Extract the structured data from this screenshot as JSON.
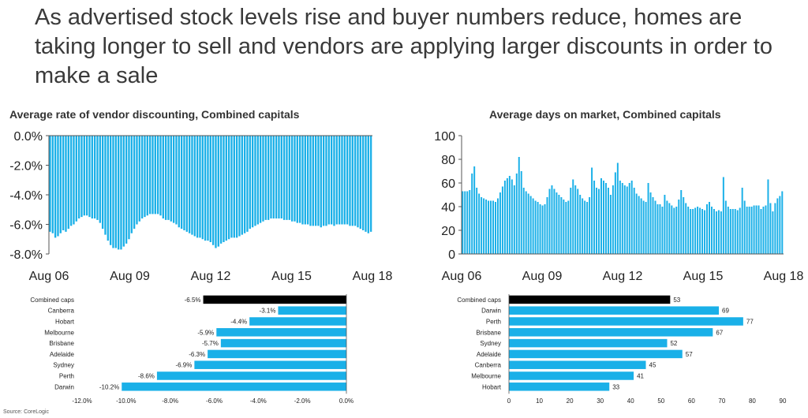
{
  "headline": "As advertised stock levels rise and buyer numbers reduce, homes are taking longer to sell and vendors are applying larger discounts in order to make a sale",
  "source": "Source: CoreLogic",
  "colors": {
    "bar": "#1ab0e8",
    "highlight": "#000000",
    "axis": "#555555"
  },
  "chart_data": [
    {
      "type": "bar",
      "title": "Average rate of vendor discounting, Combined capitals",
      "x_tick_labels": [
        "Aug 06",
        "Aug 09",
        "Aug 12",
        "Aug 15",
        "Aug 18"
      ],
      "y_tick_labels": [
        "0.0%",
        "-2.0%",
        "-4.0%",
        "-6.0%",
        "-8.0%"
      ],
      "ylim": [
        -8,
        0
      ],
      "series": [
        {
          "values": [
            -6.5,
            -6.6,
            -6.9,
            -6.8,
            -6.6,
            -6.4,
            -6.5,
            -6.3,
            -6.1,
            -6.0,
            -5.8,
            -5.6,
            -5.5,
            -5.4,
            -5.4,
            -5.5,
            -5.6,
            -5.6,
            -5.7,
            -5.9,
            -6.3,
            -6.7,
            -7.1,
            -7.4,
            -7.6,
            -7.6,
            -7.7,
            -7.7,
            -7.5,
            -7.3,
            -7.0,
            -6.6,
            -6.3,
            -6.0,
            -5.8,
            -5.6,
            -5.5,
            -5.4,
            -5.3,
            -5.3,
            -5.3,
            -5.3,
            -5.4,
            -5.6,
            -5.7,
            -5.7,
            -5.8,
            -5.9,
            -6.0,
            -6.2,
            -6.3,
            -6.4,
            -6.5,
            -6.6,
            -6.7,
            -6.8,
            -6.9,
            -6.9,
            -7.0,
            -7.1,
            -7.1,
            -7.2,
            -7.4,
            -7.6,
            -7.5,
            -7.3,
            -7.2,
            -7.1,
            -7.0,
            -6.9,
            -6.9,
            -6.9,
            -6.8,
            -6.7,
            -6.6,
            -6.5,
            -6.3,
            -6.2,
            -6.1,
            -6.0,
            -5.9,
            -5.8,
            -5.7,
            -5.7,
            -5.6,
            -5.6,
            -5.6,
            -5.6,
            -5.6,
            -5.7,
            -5.7,
            -5.7,
            -5.8,
            -5.8,
            -5.9,
            -5.9,
            -6.0,
            -6.0,
            -6.0,
            -6.1,
            -6.1,
            -6.1,
            -6.1,
            -6.2,
            -6.1,
            -6.1,
            -6.0,
            -6.0,
            -6.1,
            -6.0,
            -6.0,
            -6.0,
            -6.0,
            -6.0,
            -6.1,
            -6.1,
            -6.1,
            -6.2,
            -6.3,
            -6.4,
            -6.5,
            -6.6,
            -6.5
          ]
        }
      ]
    },
    {
      "type": "bar",
      "title": "Average days on market, Combined capitals",
      "x_tick_labels": [
        "Aug 06",
        "Aug 09",
        "Aug 12",
        "Aug 15",
        "Aug 18"
      ],
      "y_tick_labels": [
        "0",
        "20",
        "40",
        "60",
        "80",
        "100"
      ],
      "ylim": [
        0,
        100
      ],
      "series": [
        {
          "values": [
            53,
            53,
            53,
            54,
            68,
            74,
            56,
            51,
            48,
            47,
            46,
            45,
            45,
            45,
            44,
            47,
            52,
            57,
            62,
            64,
            66,
            63,
            58,
            68,
            82,
            70,
            56,
            53,
            51,
            49,
            47,
            45,
            44,
            42,
            41,
            42,
            48,
            55,
            58,
            55,
            52,
            50,
            48,
            46,
            44,
            45,
            56,
            63,
            58,
            55,
            50,
            47,
            45,
            44,
            48,
            73,
            62,
            56,
            55,
            64,
            62,
            60,
            56,
            50,
            58,
            69,
            77,
            62,
            60,
            58,
            57,
            60,
            62,
            56,
            51,
            49,
            47,
            45,
            44,
            60,
            52,
            48,
            45,
            42,
            42,
            40,
            50,
            45,
            43,
            41,
            39,
            40,
            46,
            54,
            48,
            43,
            40,
            38,
            38,
            39,
            40,
            39,
            38,
            37,
            42,
            44,
            40,
            38,
            36,
            37,
            36,
            65,
            45,
            40,
            38,
            38,
            38,
            37,
            39,
            56,
            45,
            40,
            40,
            40,
            41,
            41,
            41,
            38,
            40,
            41,
            63,
            43,
            36,
            43,
            47,
            49,
            53
          ]
        }
      ]
    },
    {
      "type": "bar",
      "orientation": "horizontal",
      "categories": [
        "Combined caps",
        "Canberra",
        "Hobart",
        "Melbourne",
        "Brisbane",
        "Adelaide",
        "Sydney",
        "Perth",
        "Darwin"
      ],
      "values": [
        -6.5,
        -3.1,
        -4.4,
        -5.9,
        -5.7,
        -6.3,
        -6.9,
        -8.6,
        -10.2
      ],
      "data_labels": [
        "-6.5%",
        "-3.1%",
        "-4.4%",
        "-5.9%",
        "-5.7%",
        "-6.3%",
        "-6.9%",
        "-8.6%",
        "-10.2%"
      ],
      "x_tick_labels": [
        "-12.0%",
        "-10.0%",
        "-8.0%",
        "-6.0%",
        "-4.0%",
        "-2.0%",
        "0.0%"
      ],
      "xlim": [
        -12,
        0
      ]
    },
    {
      "type": "bar",
      "orientation": "horizontal",
      "categories": [
        "Combined caps",
        "Darwin",
        "Perth",
        "Brisbane",
        "Sydney",
        "Adelaide",
        "Canberra",
        "Melbourne",
        "Hobart"
      ],
      "values": [
        53,
        69,
        77,
        67,
        52,
        57,
        45,
        41,
        33
      ],
      "data_labels": [
        "53",
        "69",
        "77",
        "67",
        "52",
        "57",
        "45",
        "41",
        "33"
      ],
      "x_tick_labels": [
        "0",
        "10",
        "20",
        "30",
        "40",
        "50",
        "60",
        "70",
        "80",
        "90"
      ],
      "xlim": [
        0,
        90
      ]
    }
  ]
}
